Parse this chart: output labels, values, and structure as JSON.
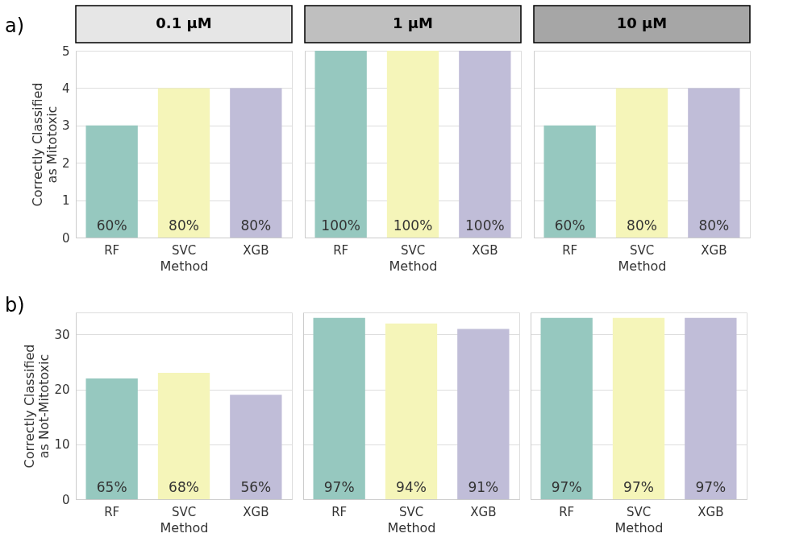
{
  "chart_data": [
    {
      "type": "bar",
      "title": "0.1 µM",
      "ylabel": "Correctly Classified\nas Mitotoxic",
      "xlabel": "Method",
      "categories": [
        "RF",
        "SVC",
        "XGB"
      ],
      "values": [
        3,
        4,
        4
      ],
      "colors": [
        "#96c8bf",
        "#f5f5b9",
        "#c0bdd8"
      ],
      "ylim": [
        0,
        5
      ],
      "yticks": [
        0,
        1,
        2,
        3,
        4,
        5
      ],
      "grid": "y",
      "annotations": [
        "a)",
        {
          "text": "60%",
          "x": "RF",
          "y": 0
        },
        {
          "text": "80%",
          "x": "SVC",
          "y": 0
        },
        {
          "text": "80%",
          "x": "XGB",
          "y": 0
        }
      ]
    },
    {
      "type": "bar",
      "title": "1 µM",
      "xlabel": "Method",
      "categories": [
        "RF",
        "SVC",
        "XGB"
      ],
      "values": [
        5,
        5,
        5
      ],
      "colors": [
        "#96c8bf",
        "#f5f5b9",
        "#c0bdd8"
      ],
      "ylim": [
        0,
        5
      ],
      "yticks": [
        0,
        1,
        2,
        3,
        4,
        5
      ],
      "grid": "y",
      "tick_labels": "x",
      "annotations": [
        {
          "text": "100%",
          "x": "RF",
          "y": 0
        },
        {
          "text": "100%",
          "x": "SVC",
          "y": 0
        },
        {
          "text": "100%",
          "x": "XGB",
          "y": 0
        }
      ]
    },
    {
      "type": "bar",
      "title": "10 µM",
      "xlabel": "Method",
      "categories": [
        "RF",
        "SVC",
        "XGB"
      ],
      "values": [
        3,
        4,
        4
      ],
      "colors": [
        "#96c8bf",
        "#f5f5b9",
        "#c0bdd8"
      ],
      "ylim": [
        0,
        5
      ],
      "yticks": [
        0,
        1,
        2,
        3,
        4,
        5
      ],
      "grid": "y",
      "tick_labels": "x",
      "annotations": [
        {
          "text": "60%",
          "x": "RF",
          "y": 0
        },
        {
          "text": "80%",
          "x": "SVC",
          "y": 0
        },
        {
          "text": "80%",
          "x": "XGB",
          "y": 0
        }
      ]
    },
    {
      "type": "bar",
      "ylabel": "Correctly Classified\nas Not-Mitotoxic",
      "xlabel": "Method",
      "categories": [
        "RF",
        "SVC",
        "XGB"
      ],
      "values": [
        22,
        23,
        19
      ],
      "colors": [
        "#96c8bf",
        "#f5f5b9",
        "#c0bdd8"
      ],
      "ylim": [
        0,
        34
      ],
      "yticks": [
        0,
        10,
        20,
        30
      ],
      "grid": "y",
      "annotations": [
        "b)",
        {
          "text": "65%",
          "x": "RF",
          "y": 0
        },
        {
          "text": "68%",
          "x": "SVC",
          "y": 0
        },
        {
          "text": "56%",
          "x": "XGB",
          "y": 0
        }
      ]
    },
    {
      "type": "bar",
      "xlabel": "Method",
      "categories": [
        "RF",
        "SVC",
        "XGB"
      ],
      "values": [
        33,
        32,
        31
      ],
      "colors": [
        "#96c8bf",
        "#f5f5b9",
        "#c0bdd8"
      ],
      "ylim": [
        0,
        34
      ],
      "yticks": [
        0,
        10,
        20,
        30
      ],
      "grid": "y",
      "tick_labels": "x",
      "annotations": [
        {
          "text": "97%",
          "x": "RF",
          "y": 0
        },
        {
          "text": "94%",
          "x": "SVC",
          "y": 0
        },
        {
          "text": "91%",
          "x": "XGB",
          "y": 0
        }
      ]
    },
    {
      "type": "bar",
      "xlabel": "Method",
      "categories": [
        "RF",
        "SVC",
        "XGB"
      ],
      "values": [
        33,
        33,
        33
      ],
      "colors": [
        "#96c8bf",
        "#f5f5b9",
        "#c0bdd8"
      ],
      "ylim": [
        0,
        34
      ],
      "yticks": [
        0,
        10,
        20,
        30
      ],
      "grid": "y",
      "tick_labels": "x",
      "annotations": [
        {
          "text": "97%",
          "x": "RF",
          "y": 0
        },
        {
          "text": "97%",
          "x": "SVC",
          "y": 0
        },
        {
          "text": "97%",
          "x": "XGB",
          "y": 0
        }
      ]
    }
  ]
}
